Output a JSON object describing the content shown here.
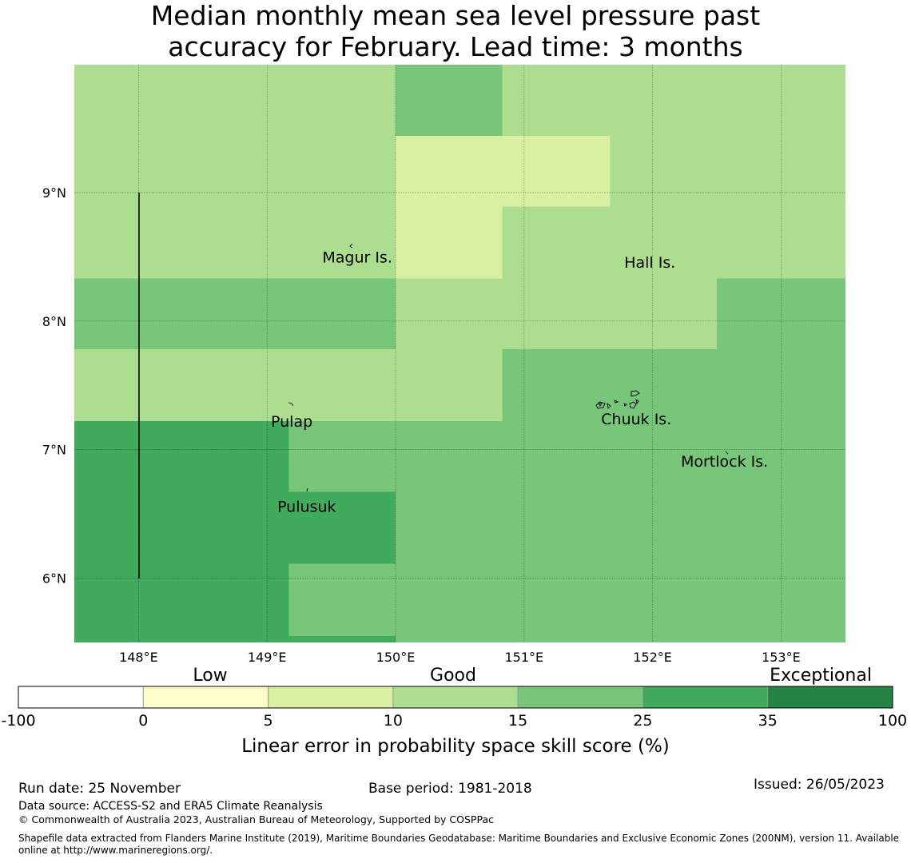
{
  "title_lines": [
    "Median monthly mean sea level pressure past",
    "accuracy for February. Lead time: 3 months"
  ],
  "map": {
    "x_ticks": [
      "148°E",
      "149°E",
      "150°E",
      "151°E",
      "152°E",
      "153°E"
    ],
    "y_ticks": [
      "9°N",
      "8°N",
      "7°N",
      "6°N"
    ],
    "places": [
      {
        "name": "Magur Is.",
        "lon": 149.43,
        "lat": 8.5
      },
      {
        "name": "Hall Is.",
        "lon": 151.78,
        "lat": 8.46
      },
      {
        "name": "Pulap",
        "lon": 149.03,
        "lat": 7.22
      },
      {
        "name": "Chuuk Is.",
        "lon": 151.6,
        "lat": 7.24
      },
      {
        "name": "Mortlock Is.",
        "lon": 152.22,
        "lat": 6.91
      },
      {
        "name": "Pulusuk",
        "lon": 149.08,
        "lat": 6.56
      }
    ],
    "cells": [
      {
        "lon0": 147.5,
        "lon1": 150.0,
        "lat0": 8.33,
        "lat1": 10.0,
        "score": 12
      },
      {
        "lon0": 150.0,
        "lon1": 150.83,
        "lat0": 9.44,
        "lat1": 10.0,
        "score": 20
      },
      {
        "lon0": 150.83,
        "lon1": 153.5,
        "lat0": 9.44,
        "lat1": 10.0,
        "score": 12
      },
      {
        "lon0": 150.0,
        "lon1": 151.67,
        "lat0": 8.89,
        "lat1": 9.44,
        "score": 7
      },
      {
        "lon0": 151.67,
        "lon1": 153.5,
        "lat0": 8.89,
        "lat1": 9.44,
        "score": 12
      },
      {
        "lon0": 150.0,
        "lon1": 150.83,
        "lat0": 8.33,
        "lat1": 8.89,
        "score": 7
      },
      {
        "lon0": 150.83,
        "lon1": 153.5,
        "lat0": 8.33,
        "lat1": 8.89,
        "score": 12
      },
      {
        "lon0": 147.5,
        "lon1": 150.0,
        "lat0": 7.78,
        "lat1": 8.33,
        "score": 20
      },
      {
        "lon0": 150.0,
        "lon1": 152.5,
        "lat0": 7.78,
        "lat1": 8.33,
        "score": 12
      },
      {
        "lon0": 152.5,
        "lon1": 153.5,
        "lat0": 7.78,
        "lat1": 8.33,
        "score": 20
      },
      {
        "lon0": 147.5,
        "lon1": 150.83,
        "lat0": 7.22,
        "lat1": 7.78,
        "score": 12
      },
      {
        "lon0": 150.83,
        "lon1": 153.5,
        "lat0": 7.22,
        "lat1": 7.78,
        "score": 20
      },
      {
        "lon0": 147.5,
        "lon1": 149.17,
        "lat0": 5.5,
        "lat1": 7.22,
        "score": 30
      },
      {
        "lon0": 149.17,
        "lon1": 150.0,
        "lat0": 6.67,
        "lat1": 7.22,
        "score": 20
      },
      {
        "lon0": 149.17,
        "lon1": 150.0,
        "lat0": 6.11,
        "lat1": 6.67,
        "score": 30
      },
      {
        "lon0": 149.17,
        "lon1": 150.0,
        "lat0": 5.55,
        "lat1": 6.11,
        "score": 20
      },
      {
        "lon0": 149.17,
        "lon1": 150.0,
        "lat0": 5.5,
        "lat1": 5.55,
        "score": 30
      },
      {
        "lon0": 150.0,
        "lon1": 153.5,
        "lat0": 5.5,
        "lat1": 7.22,
        "score": 20
      }
    ]
  },
  "colorbar": {
    "category_labels": [
      "Low",
      "Good",
      "Exceptional"
    ],
    "bins": [
      {
        "from": -100,
        "to": 0,
        "color": "#ffffff"
      },
      {
        "from": 0,
        "to": 5,
        "color": "#ffffcc"
      },
      {
        "from": 5,
        "to": 10,
        "color": "#d9f0a3"
      },
      {
        "from": 10,
        "to": 15,
        "color": "#addd8e"
      },
      {
        "from": 15,
        "to": 25,
        "color": "#78c679"
      },
      {
        "from": 25,
        "to": 35,
        "color": "#41ab5d"
      },
      {
        "from": 35,
        "to": 100,
        "color": "#238443"
      }
    ],
    "tick_labels": [
      "-100",
      "0",
      "5",
      "10",
      "15",
      "25",
      "35",
      "100"
    ],
    "xlabel": "Linear error in probability space skill score (%)"
  },
  "footer": {
    "run_date": "Run date: 25 November",
    "base_period": "Base period: 1981-2018",
    "issued": "Issued: 26/05/2023",
    "data_source": "Data source: ACCESS-S2 and ERA5 Climate Reanalysis",
    "copyright": "© Commonwealth of Australia 2023, Australian Bureau of Meteorology, Supported by COSPPac",
    "shapefile_line1": "Shapefile data extracted from Flanders Marine Institute (2019), Maritime Boundaries Geodatabase: Maritime Boundaries and Exclusive Economic Zones (200NM), version 11. Available",
    "shapefile_line2": "online at http://www.marineregions.org/."
  }
}
